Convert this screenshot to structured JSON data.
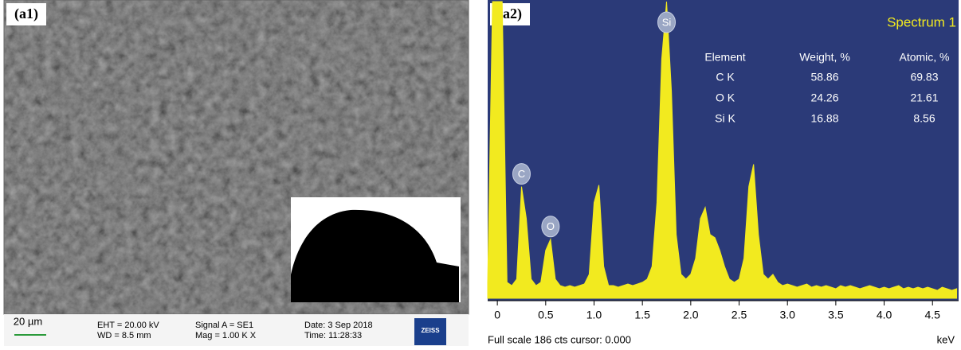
{
  "sem_panel": {
    "label": "(a1)",
    "scale_bar": "20 µm",
    "info": [
      "EHT = 20.00 kV",
      "WD = 8.5 mm",
      "Signal A = SE1",
      "Mag = 1.00 K X",
      "Date: 3 Sep 2018",
      "Time: 11:28:33"
    ],
    "logo": "ZEISS"
  },
  "chart_data": {
    "type": "area",
    "label": "(a2)",
    "title": "Spectrum 1",
    "color": "#f2ea1f",
    "x": [
      -0.1,
      -0.05,
      0,
      0.05,
      0.1,
      0.15,
      0.2,
      0.25,
      0.3,
      0.35,
      0.4,
      0.45,
      0.5,
      0.55,
      0.6,
      0.65,
      0.7,
      0.75,
      0.8,
      0.85,
      0.9,
      0.95,
      1.0,
      1.05,
      1.1,
      1.15,
      1.2,
      1.25,
      1.3,
      1.35,
      1.4,
      1.45,
      1.5,
      1.55,
      1.6,
      1.65,
      1.7,
      1.75,
      1.8,
      1.85,
      1.9,
      1.95,
      2.0,
      2.05,
      2.1,
      2.15,
      2.2,
      2.25,
      2.3,
      2.35,
      2.4,
      2.45,
      2.5,
      2.55,
      2.6,
      2.65,
      2.7,
      2.75,
      2.8,
      2.85,
      2.9,
      2.95,
      3.0,
      3.05,
      3.1,
      3.15,
      3.2,
      3.25,
      3.3,
      3.35,
      3.4,
      3.45,
      3.5,
      3.55,
      3.6,
      3.65,
      3.7,
      3.75,
      3.8,
      3.85,
      3.9,
      3.95,
      4.0,
      4.05,
      4.1,
      4.15,
      4.2,
      4.25,
      4.3,
      4.35,
      4.4,
      4.45,
      4.5,
      4.55,
      4.6,
      4.65,
      4.7,
      4.75
    ],
    "values": [
      10,
      186,
      186,
      186,
      10,
      8,
      12,
      70,
      50,
      12,
      8,
      10,
      30,
      37,
      12,
      8,
      7,
      8,
      7,
      8,
      9,
      15,
      60,
      71,
      20,
      8,
      8,
      7,
      8,
      9,
      8,
      9,
      10,
      12,
      20,
      60,
      150,
      186,
      130,
      40,
      15,
      12,
      15,
      25,
      50,
      57,
      40,
      38,
      30,
      20,
      12,
      10,
      12,
      25,
      70,
      84,
      40,
      15,
      12,
      15,
      10,
      8,
      9,
      8,
      7,
      8,
      9,
      7,
      8,
      7,
      8,
      7,
      6,
      8,
      7,
      8,
      7,
      6,
      7,
      8,
      7,
      6,
      7,
      6,
      7,
      8,
      6,
      7,
      6,
      7,
      6,
      7,
      6,
      5,
      7,
      6,
      5,
      6
    ],
    "xlim": [
      -0.1,
      4.77
    ],
    "ylim": [
      0,
      186
    ],
    "xticks": [
      0,
      0.5,
      {
        "value": 1,
        "label": "1.0"
      },
      1.5,
      {
        "value": 2,
        "label": "2.0"
      },
      2.5,
      {
        "value": 3,
        "label": "3.0"
      },
      3.5,
      {
        "value": 4,
        "label": "4.0"
      },
      4.5
    ],
    "annotations": [
      {
        "text": "Si",
        "x": 1.75
      },
      {
        "text": "C",
        "x": 0.25
      },
      {
        "text": "O",
        "x": 0.55
      }
    ],
    "table": {
      "header": [
        "Element",
        "Weight, %",
        "Atomic, %"
      ],
      "rows": [
        [
          "C K",
          "58.86",
          "69.83"
        ],
        [
          "O K",
          "24.26",
          "21.61"
        ],
        [
          "Si K",
          "16.88",
          "8.56"
        ]
      ]
    },
    "footer": "Full scale 186 cts cursor: 0.000",
    "x_unit": "keV"
  }
}
